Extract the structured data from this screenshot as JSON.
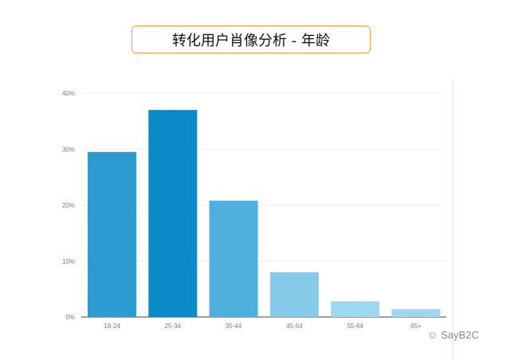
{
  "chart_data": {
    "type": "bar",
    "title": "转化用户肖像分析 - 年龄",
    "categories": [
      "18-24",
      "25-34",
      "35-44",
      "45-54",
      "55-64",
      "65+"
    ],
    "values": [
      29.5,
      37.0,
      20.8,
      8.0,
      2.8,
      1.4
    ],
    "colors": [
      "#2b9bd1",
      "#0a8bc8",
      "#4eb0dc",
      "#86cbea",
      "#9fd6f0",
      "#9fd6f0"
    ],
    "ylim": [
      0,
      40
    ],
    "yticks": [
      "0%",
      "10%",
      "20%",
      "30%",
      "40%"
    ],
    "grid": true,
    "xlabel": "",
    "ylabel": ""
  },
  "watermark": "SayB2C"
}
